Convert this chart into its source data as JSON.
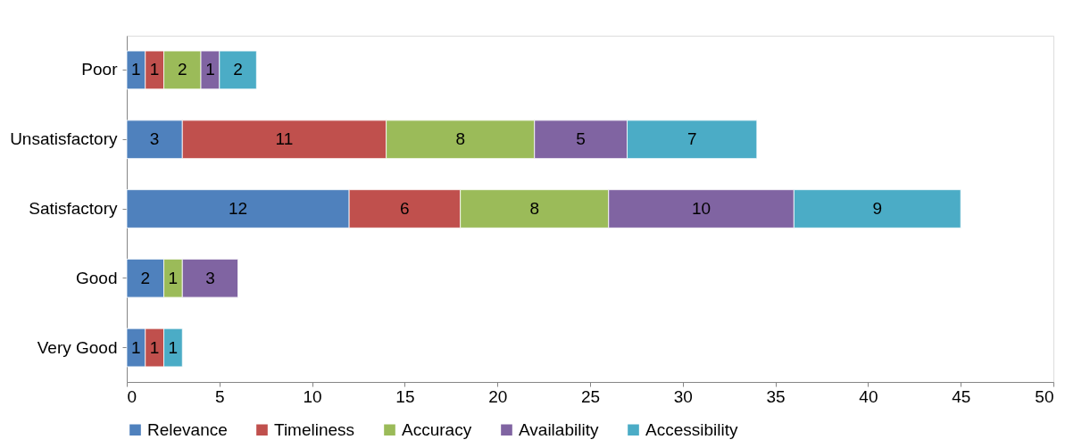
{
  "chart_data": {
    "type": "bar",
    "orientation": "horizontal",
    "stacked": true,
    "categories": [
      "Poor",
      "Unsatisfactory",
      "Satisfactory",
      "Good",
      "Very Good"
    ],
    "series": [
      {
        "name": "Relevance",
        "color": "#4f81bd",
        "values": [
          1,
          3,
          12,
          2,
          1
        ]
      },
      {
        "name": "Timeliness",
        "color": "#c0504d",
        "values": [
          1,
          11,
          6,
          null,
          1
        ]
      },
      {
        "name": "Accuracy",
        "color": "#9bbb59",
        "values": [
          2,
          8,
          8,
          1,
          null
        ]
      },
      {
        "name": "Availability",
        "color": "#8064a2",
        "values": [
          1,
          5,
          10,
          3,
          null
        ]
      },
      {
        "name": "Accessibility",
        "color": "#4bacc6",
        "values": [
          2,
          7,
          9,
          null,
          1
        ]
      }
    ],
    "xlim": [
      0,
      50
    ],
    "xticks": [
      0,
      5,
      10,
      15,
      20,
      25,
      30,
      35,
      40,
      45,
      50
    ],
    "data_labels": true,
    "grid": false,
    "legend": "bottom"
  }
}
